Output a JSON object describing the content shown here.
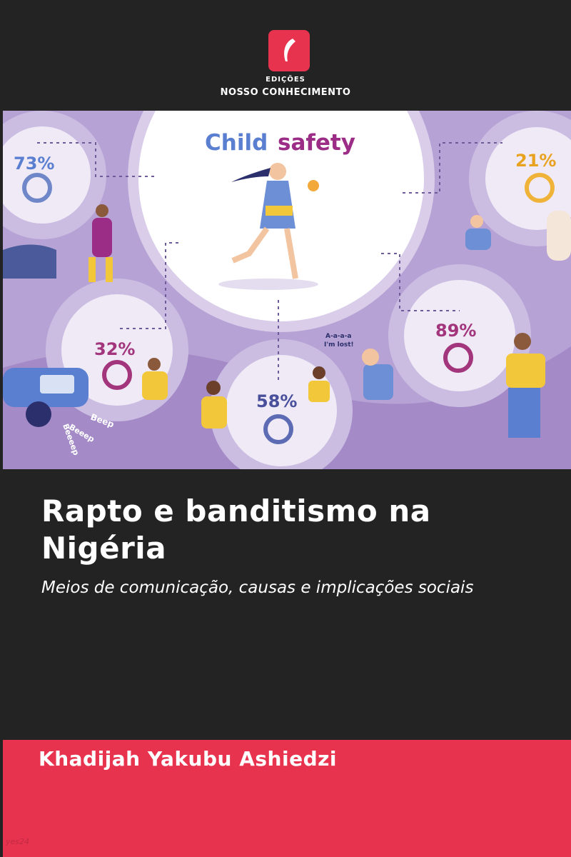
{
  "publisher": {
    "line1": "EDIÇÕES",
    "line2": "NOSSO CONHECIMENTO"
  },
  "illustration": {
    "heading_1": "Child",
    "heading_2": "safety",
    "stats": [
      "73%",
      "21%",
      "32%",
      "89%",
      "58%"
    ],
    "speech": [
      "A-a-a-a",
      "I'm lost!"
    ],
    "sounds": [
      "Beep",
      "Beeep",
      "Beeeep"
    ]
  },
  "title": "Rapto e banditismo na Nigéria",
  "subtitle": "Meios de comunicação, causas e implicações sociais",
  "author": "Khadijah Yakubu Ashiedzi",
  "watermark": "yes24"
}
